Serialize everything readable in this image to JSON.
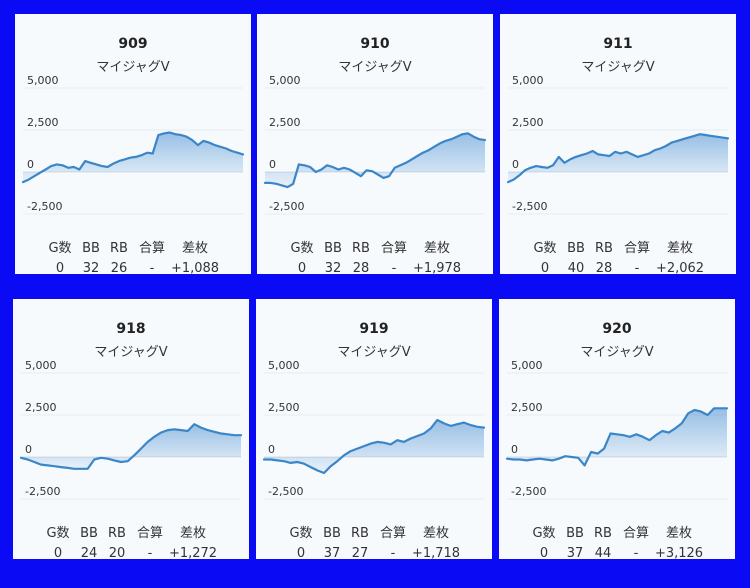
{
  "stat_headers": [
    "G数",
    "BB",
    "RB",
    "合算",
    "差枚"
  ],
  "chart_data": [
    {
      "type": "area",
      "number": "909",
      "model": "マイジャグV",
      "yticks": [
        "5,000",
        "2,500",
        "0",
        "-2,500"
      ],
      "ylim": [
        -2500,
        5000
      ],
      "stats": {
        "games": "0",
        "bb": "32",
        "rb": "26",
        "combined": "-",
        "diff": "+1,088"
      },
      "y": [
        -600,
        -450,
        -250,
        -50,
        150,
        350,
        450,
        400,
        250,
        300,
        150,
        650,
        550,
        450,
        350,
        300,
        500,
        650,
        750,
        850,
        900,
        1000,
        1150,
        1100,
        2200,
        2300,
        2350,
        2250,
        2200,
        2100,
        1900,
        1600,
        1850,
        1750,
        1600,
        1500,
        1400,
        1250,
        1150,
        1050
      ]
    },
    {
      "type": "area",
      "number": "910",
      "model": "マイジャグV",
      "yticks": [
        "5,000",
        "2,500",
        "0",
        "-2,500"
      ],
      "ylim": [
        -2500,
        5000
      ],
      "stats": {
        "games": "0",
        "bb": "32",
        "rb": "28",
        "combined": "-",
        "diff": "+1,978"
      },
      "y": [
        -650,
        -650,
        -700,
        -800,
        -900,
        -700,
        450,
        400,
        300,
        0,
        150,
        400,
        300,
        150,
        250,
        150,
        -50,
        -250,
        100,
        50,
        -150,
        -350,
        -250,
        250,
        400,
        550,
        750,
        950,
        1150,
        1300,
        1500,
        1700,
        1850,
        1950,
        2100,
        2250,
        2300,
        2100,
        1950,
        1900
      ]
    },
    {
      "type": "area",
      "number": "911",
      "model": "マイジャグV",
      "yticks": [
        "5,000",
        "2,500",
        "0",
        "-2,500"
      ],
      "ylim": [
        -2500,
        5000
      ],
      "stats": {
        "games": "0",
        "bb": "40",
        "rb": "28",
        "combined": "-",
        "diff": "+2,062"
      },
      "y": [
        -600,
        -450,
        -200,
        100,
        250,
        350,
        300,
        250,
        400,
        900,
        550,
        750,
        900,
        1000,
        1100,
        1250,
        1050,
        1000,
        950,
        1200,
        1100,
        1200,
        1050,
        900,
        1000,
        1100,
        1300,
        1400,
        1550,
        1750,
        1850,
        1950,
        2050,
        2150,
        2250,
        2200,
        2150,
        2100,
        2050,
        2000
      ]
    },
    {
      "type": "area",
      "number": "918",
      "model": "マイジャグV",
      "yticks": [
        "5,000",
        "2,500",
        "0",
        "-2,500"
      ],
      "ylim": [
        -2500,
        5000
      ],
      "stats": {
        "games": "0",
        "bb": "24",
        "rb": "20",
        "combined": "-",
        "diff": "+1,272"
      },
      "y": [
        -50,
        -150,
        -300,
        -450,
        -500,
        -550,
        -600,
        -650,
        -700,
        -700,
        -700,
        -150,
        -50,
        -100,
        -200,
        -300,
        -250,
        100,
        500,
        900,
        1200,
        1450,
        1600,
        1650,
        1600,
        1550,
        1950,
        1750,
        1600,
        1500,
        1400,
        1350,
        1300,
        1300
      ]
    },
    {
      "type": "area",
      "number": "919",
      "model": "マイジャグV",
      "yticks": [
        "5,000",
        "2,500",
        "0",
        "-2,500"
      ],
      "ylim": [
        -2500,
        5000
      ],
      "stats": {
        "games": "0",
        "bb": "37",
        "rb": "27",
        "combined": "-",
        "diff": "+1,718"
      },
      "y": [
        -150,
        -150,
        -200,
        -250,
        -350,
        -300,
        -400,
        -600,
        -800,
        -950,
        -550,
        -250,
        100,
        350,
        500,
        650,
        800,
        900,
        850,
        750,
        1000,
        900,
        1100,
        1250,
        1400,
        1700,
        2200,
        2000,
        1850,
        1950,
        2050,
        1900,
        1800,
        1750
      ]
    },
    {
      "type": "area",
      "number": "920",
      "model": "マイジャグV",
      "yticks": [
        "5,000",
        "2,500",
        "0",
        "-2,500"
      ],
      "ylim": [
        -2500,
        5000
      ],
      "stats": {
        "games": "0",
        "bb": "37",
        "rb": "44",
        "combined": "-",
        "diff": "+3,126"
      },
      "y": [
        -100,
        -150,
        -150,
        -200,
        -150,
        -100,
        -150,
        -200,
        -100,
        50,
        0,
        -50,
        -500,
        300,
        200,
        500,
        1400,
        1350,
        1300,
        1200,
        1350,
        1200,
        1000,
        1300,
        1550,
        1450,
        1700,
        2000,
        2600,
        2800,
        2700,
        2500,
        2900,
        2900,
        2900
      ]
    }
  ]
}
